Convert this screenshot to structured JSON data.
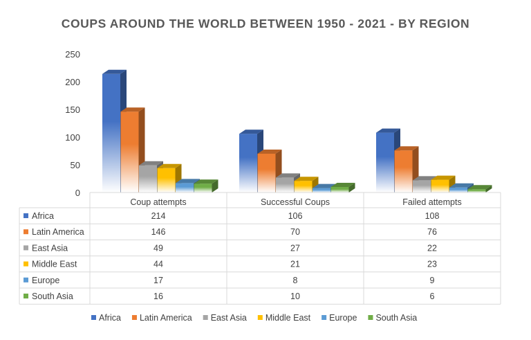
{
  "chart_data": {
    "type": "bar",
    "title": "COUPS AROUND THE WORLD BETWEEN 1950 - 2021 - BY REGION",
    "categories": [
      "Coup attempts",
      "Successful Coups",
      "Failed attempts"
    ],
    "series": [
      {
        "name": "Africa",
        "values": [
          214,
          106,
          108
        ],
        "color": "#4472C4"
      },
      {
        "name": "Latin America",
        "values": [
          146,
          70,
          76
        ],
        "color": "#ED7D31"
      },
      {
        "name": "East Asia",
        "values": [
          49,
          27,
          22
        ],
        "color": "#A5A5A5"
      },
      {
        "name": "Middle East",
        "values": [
          44,
          21,
          23
        ],
        "color": "#FFC000"
      },
      {
        "name": "Europe",
        "values": [
          17,
          8,
          9
        ],
        "color": "#5B9BD5"
      },
      {
        "name": "South Asia",
        "values": [
          16,
          10,
          6
        ],
        "color": "#70AD47"
      }
    ],
    "ylim": [
      0,
      250
    ],
    "yticks": [
      0,
      50,
      100,
      150,
      200,
      250
    ],
    "data_table": true,
    "legend_position": "bottom",
    "grid": false
  }
}
